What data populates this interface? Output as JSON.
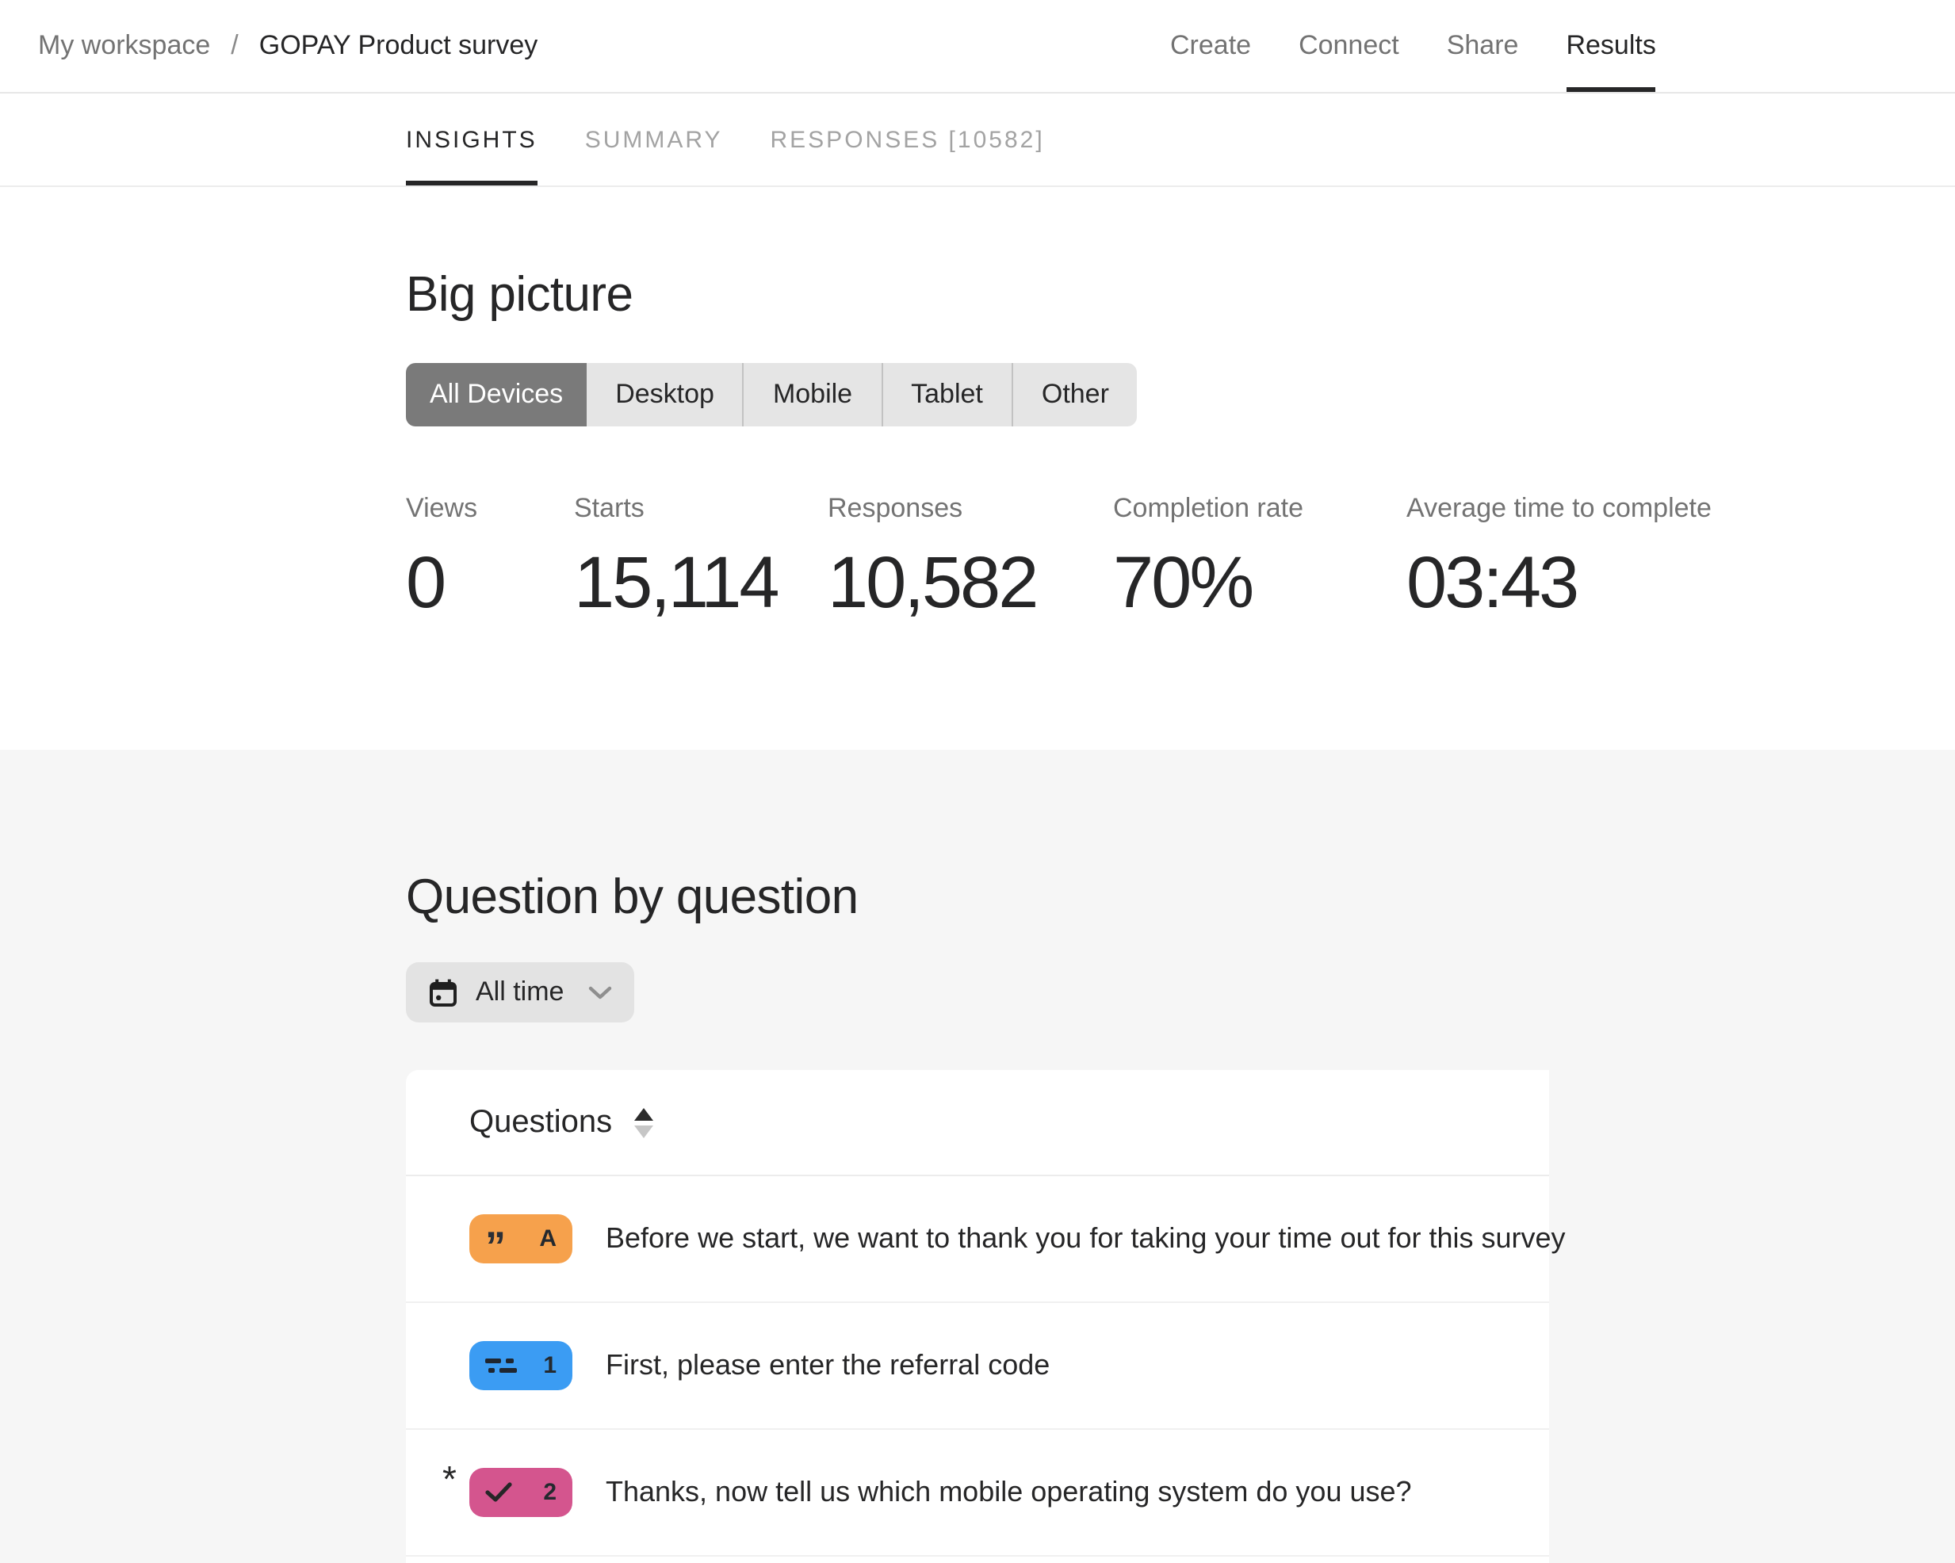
{
  "breadcrumb": {
    "workspace": "My workspace",
    "separator": "/",
    "survey": "GOPAY Product survey"
  },
  "topnav": {
    "items": [
      "Create",
      "Connect",
      "Share",
      "Results"
    ],
    "active": "Results"
  },
  "tabs": {
    "items": [
      "INSIGHTS",
      "SUMMARY",
      "RESPONSES [10582]"
    ],
    "active": "INSIGHTS",
    "responses_count": "10582"
  },
  "big_picture": {
    "title": "Big picture",
    "device_filter": {
      "options": [
        "All Devices",
        "Desktop",
        "Mobile",
        "Tablet",
        "Other"
      ],
      "selected": "All Devices"
    },
    "stats": [
      {
        "label": "Views",
        "value": "0"
      },
      {
        "label": "Starts",
        "value": "15,114"
      },
      {
        "label": "Responses",
        "value": "10,582"
      },
      {
        "label": "Completion rate",
        "value": "70%"
      },
      {
        "label": "Average time to complete",
        "value": "03:43"
      }
    ]
  },
  "question_by_question": {
    "title": "Question by question",
    "time_filter": {
      "label": "All time",
      "icon": "calendar-icon",
      "chevron": "chevron-down-icon"
    },
    "table": {
      "header": "Questions",
      "sort_icon": "sort-arrows-icon",
      "required_marker": "*",
      "rows": [
        {
          "badge_label": "A",
          "badge_color": "#F6A14C",
          "icon": "quote-icon",
          "required": false,
          "text": "Before we start, we want to thank you for taking your time out for this survey"
        },
        {
          "badge_label": "1",
          "badge_color": "#3B9CF3",
          "icon": "short-text-icon",
          "required": false,
          "text": "First, please enter the referral code"
        },
        {
          "badge_label": "2",
          "badge_color": "#D4558E",
          "icon": "checkmark-icon",
          "required": true,
          "text": "Thanks, now tell us which mobile operating system do you use?"
        }
      ]
    }
  },
  "colors": {
    "active_text": "#262627",
    "muted_text": "#737373",
    "tab_inactive": "#a3a3a3",
    "selected_segment_bg": "#7a7a7a",
    "segment_bg": "#e5e5e5",
    "section_bg": "#f6f6f6",
    "badge_orange": "#F6A14C",
    "badge_blue": "#3B9CF3",
    "badge_pink": "#D4558E"
  }
}
